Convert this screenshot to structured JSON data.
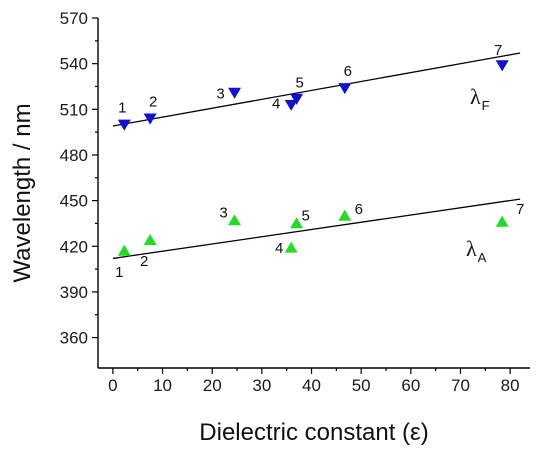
{
  "chart_data": {
    "type": "scatter",
    "xlabel": "Dielectric constant (ε)",
    "ylabel": "Wavelength / nm",
    "xlim": [
      -3,
      84
    ],
    "ylim": [
      340,
      570
    ],
    "xticks": [
      0,
      10,
      20,
      30,
      40,
      50,
      60,
      70,
      80
    ],
    "yticks": [
      360,
      390,
      420,
      450,
      480,
      510,
      540,
      570
    ],
    "grid": false,
    "series": [
      {
        "key": "lf",
        "name_main": "λ",
        "name_sub": "F",
        "marker": "triangle-down",
        "color": "#1010d0",
        "points": [
          {
            "label": "1",
            "x": 2.3,
            "y": 500
          },
          {
            "label": "2",
            "x": 7.5,
            "y": 504
          },
          {
            "label": "3",
            "x": 24.5,
            "y": 521
          },
          {
            "label": "4",
            "x": 35.9,
            "y": 513
          },
          {
            "label": "5",
            "x": 37.0,
            "y": 517
          },
          {
            "label": "6",
            "x": 46.7,
            "y": 524
          },
          {
            "label": "7",
            "x": 78.4,
            "y": 539
          }
        ],
        "fit": {
          "x": [
            0,
            82
          ],
          "y": [
            499,
            547
          ]
        }
      },
      {
        "key": "la",
        "name_main": "λ",
        "name_sub": "A",
        "marker": "triangle-up",
        "color": "#22dd22",
        "points": [
          {
            "label": "1",
            "x": 2.3,
            "y": 417
          },
          {
            "label": "2",
            "x": 7.5,
            "y": 424
          },
          {
            "label": "3",
            "x": 24.5,
            "y": 437
          },
          {
            "label": "4",
            "x": 35.9,
            "y": 419
          },
          {
            "label": "5",
            "x": 37.0,
            "y": 435
          },
          {
            "label": "6",
            "x": 46.7,
            "y": 440
          },
          {
            "label": "7",
            "x": 78.4,
            "y": 436
          }
        ],
        "fit": {
          "x": [
            0,
            82
          ],
          "y": [
            412,
            451
          ]
        }
      }
    ]
  }
}
